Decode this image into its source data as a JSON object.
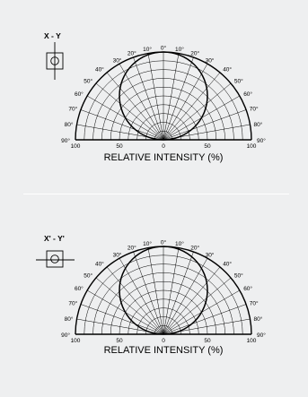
{
  "panels": [
    {
      "title": "X - Y",
      "axis_label": "RELATIVE INTENSITY  (%)",
      "angle_labels": [
        "0°",
        "10°",
        "20°",
        "30°",
        "40°",
        "50°",
        "60°",
        "70°",
        "80°",
        "90°"
      ],
      "intensity_labels": [
        "100",
        "50",
        "0",
        "50",
        "100"
      ],
      "icon": "led-front-view-icon"
    },
    {
      "title": "X' - Y'",
      "axis_label": "RELATIVE INTENSITY  (%)",
      "angle_labels": [
        "0°",
        "10°",
        "20°",
        "30°",
        "40°",
        "50°",
        "60°",
        "70°",
        "80°",
        "90°"
      ],
      "intensity_labels": [
        "100",
        "50",
        "0",
        "50",
        "100"
      ],
      "icon": "led-side-view-icon"
    }
  ],
  "colors": {
    "background": "#eeeff0",
    "divider": "#ffffff",
    "lines": "#000000"
  }
}
